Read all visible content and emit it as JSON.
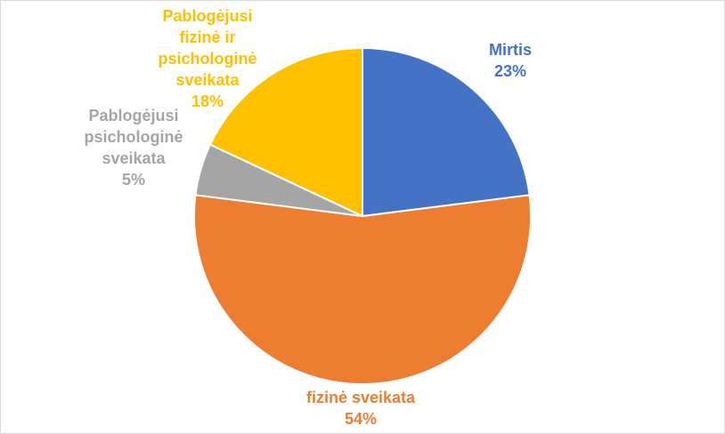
{
  "chart_data": {
    "type": "pie",
    "title": "",
    "slices": [
      {
        "label": "Mirtis",
        "value": 23,
        "value_label": "23%",
        "color": "#4472c4"
      },
      {
        "label": "fizinė sveikata",
        "value": 54,
        "value_label": "54%",
        "color": "#ed7d31"
      },
      {
        "label": "Pablogėjusi psichologinė sveikata",
        "value": 5,
        "value_label": "5%",
        "color": "#a5a5a5"
      },
      {
        "label": "Pablogėjusi fizinė ir psichologinė sveikata",
        "value": 18,
        "value_label": "18%",
        "color": "#ffc000"
      }
    ],
    "legend": "none"
  },
  "labels": {
    "mirtis": {
      "lines": [
        "Mirtis"
      ],
      "pct": "23%"
    },
    "fizine": {
      "lines": [
        "fizinė sveikata"
      ],
      "pct": "54%"
    },
    "psich": {
      "lines": [
        "Pablogėjusi",
        "psichologinė",
        "sveikata"
      ],
      "pct": "5%"
    },
    "abi": {
      "lines": [
        "Pablogėjusi",
        "fizinė ir",
        "psichologinė",
        "sveikata"
      ],
      "pct": "18%"
    }
  }
}
